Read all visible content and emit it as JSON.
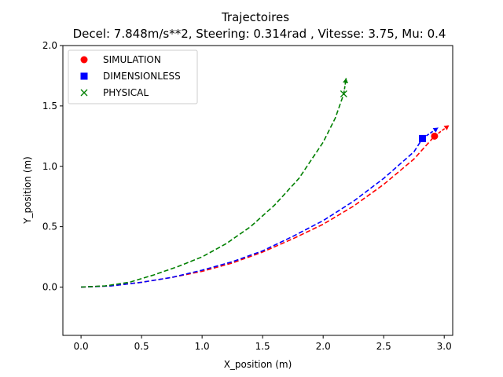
{
  "chart_data": {
    "type": "line",
    "title": "Trajectoires",
    "subtitle": "Decel: 7.848m/s**2, Steering: 0.314rad , Vitesse: 3.75, Mu: 0.4",
    "xlabel": "X_position (m)",
    "ylabel": "Y_position (m)",
    "xlim": [
      -0.15,
      3.07
    ],
    "ylim": [
      -0.4,
      2.0
    ],
    "xticks": [
      0.0,
      0.5,
      1.0,
      1.5,
      2.0,
      2.5,
      3.0
    ],
    "xtick_labels": [
      "0.0",
      "0.5",
      "1.0",
      "1.5",
      "2.0",
      "2.5",
      "3.0"
    ],
    "yticks": [
      0.0,
      0.5,
      1.0,
      1.5,
      2.0
    ],
    "ytick_labels": [
      "0.0",
      "0.5",
      "1.0",
      "1.5",
      "2.0"
    ],
    "grid": false,
    "legend_position": "top-left",
    "series": [
      {
        "name": "SIMULATION",
        "color": "#ff0000",
        "marker": "circle",
        "line_style": "dashed",
        "x": [
          0.0,
          0.25,
          0.5,
          0.75,
          1.0,
          1.25,
          1.5,
          1.75,
          2.0,
          2.25,
          2.5,
          2.75,
          2.92
        ],
        "y": [
          0.0,
          0.01,
          0.04,
          0.08,
          0.13,
          0.2,
          0.29,
          0.4,
          0.52,
          0.67,
          0.85,
          1.06,
          1.25
        ],
        "end_marker": {
          "x": 2.92,
          "y": 1.25
        },
        "arrow": {
          "from": [
            2.92,
            1.25
          ],
          "to": [
            3.04,
            1.34
          ]
        }
      },
      {
        "name": "DIMENSIONLESS",
        "color": "#0000ff",
        "marker": "square",
        "line_style": "dashed",
        "x": [
          0.0,
          0.25,
          0.5,
          0.75,
          1.0,
          1.25,
          1.5,
          1.75,
          2.0,
          2.25,
          2.5,
          2.75,
          2.82
        ],
        "y": [
          0.0,
          0.01,
          0.04,
          0.08,
          0.14,
          0.21,
          0.3,
          0.42,
          0.55,
          0.71,
          0.9,
          1.12,
          1.23
        ],
        "end_marker": {
          "x": 2.82,
          "y": 1.23
        },
        "arrow": {
          "from": [
            2.82,
            1.23
          ],
          "to": [
            2.95,
            1.32
          ]
        }
      },
      {
        "name": "PHYSICAL",
        "color": "#008000",
        "marker": "x",
        "line_style": "dashed",
        "x": [
          0.0,
          0.2,
          0.4,
          0.6,
          0.8,
          1.0,
          1.2,
          1.4,
          1.6,
          1.8,
          2.0,
          2.1,
          2.17
        ],
        "y": [
          0.0,
          0.01,
          0.04,
          0.1,
          0.17,
          0.25,
          0.36,
          0.5,
          0.68,
          0.9,
          1.2,
          1.4,
          1.6
        ],
        "end_marker": {
          "x": 2.17,
          "y": 1.6
        },
        "arrow": {
          "from": [
            2.17,
            1.6
          ],
          "to": [
            2.19,
            1.73
          ]
        }
      }
    ]
  }
}
